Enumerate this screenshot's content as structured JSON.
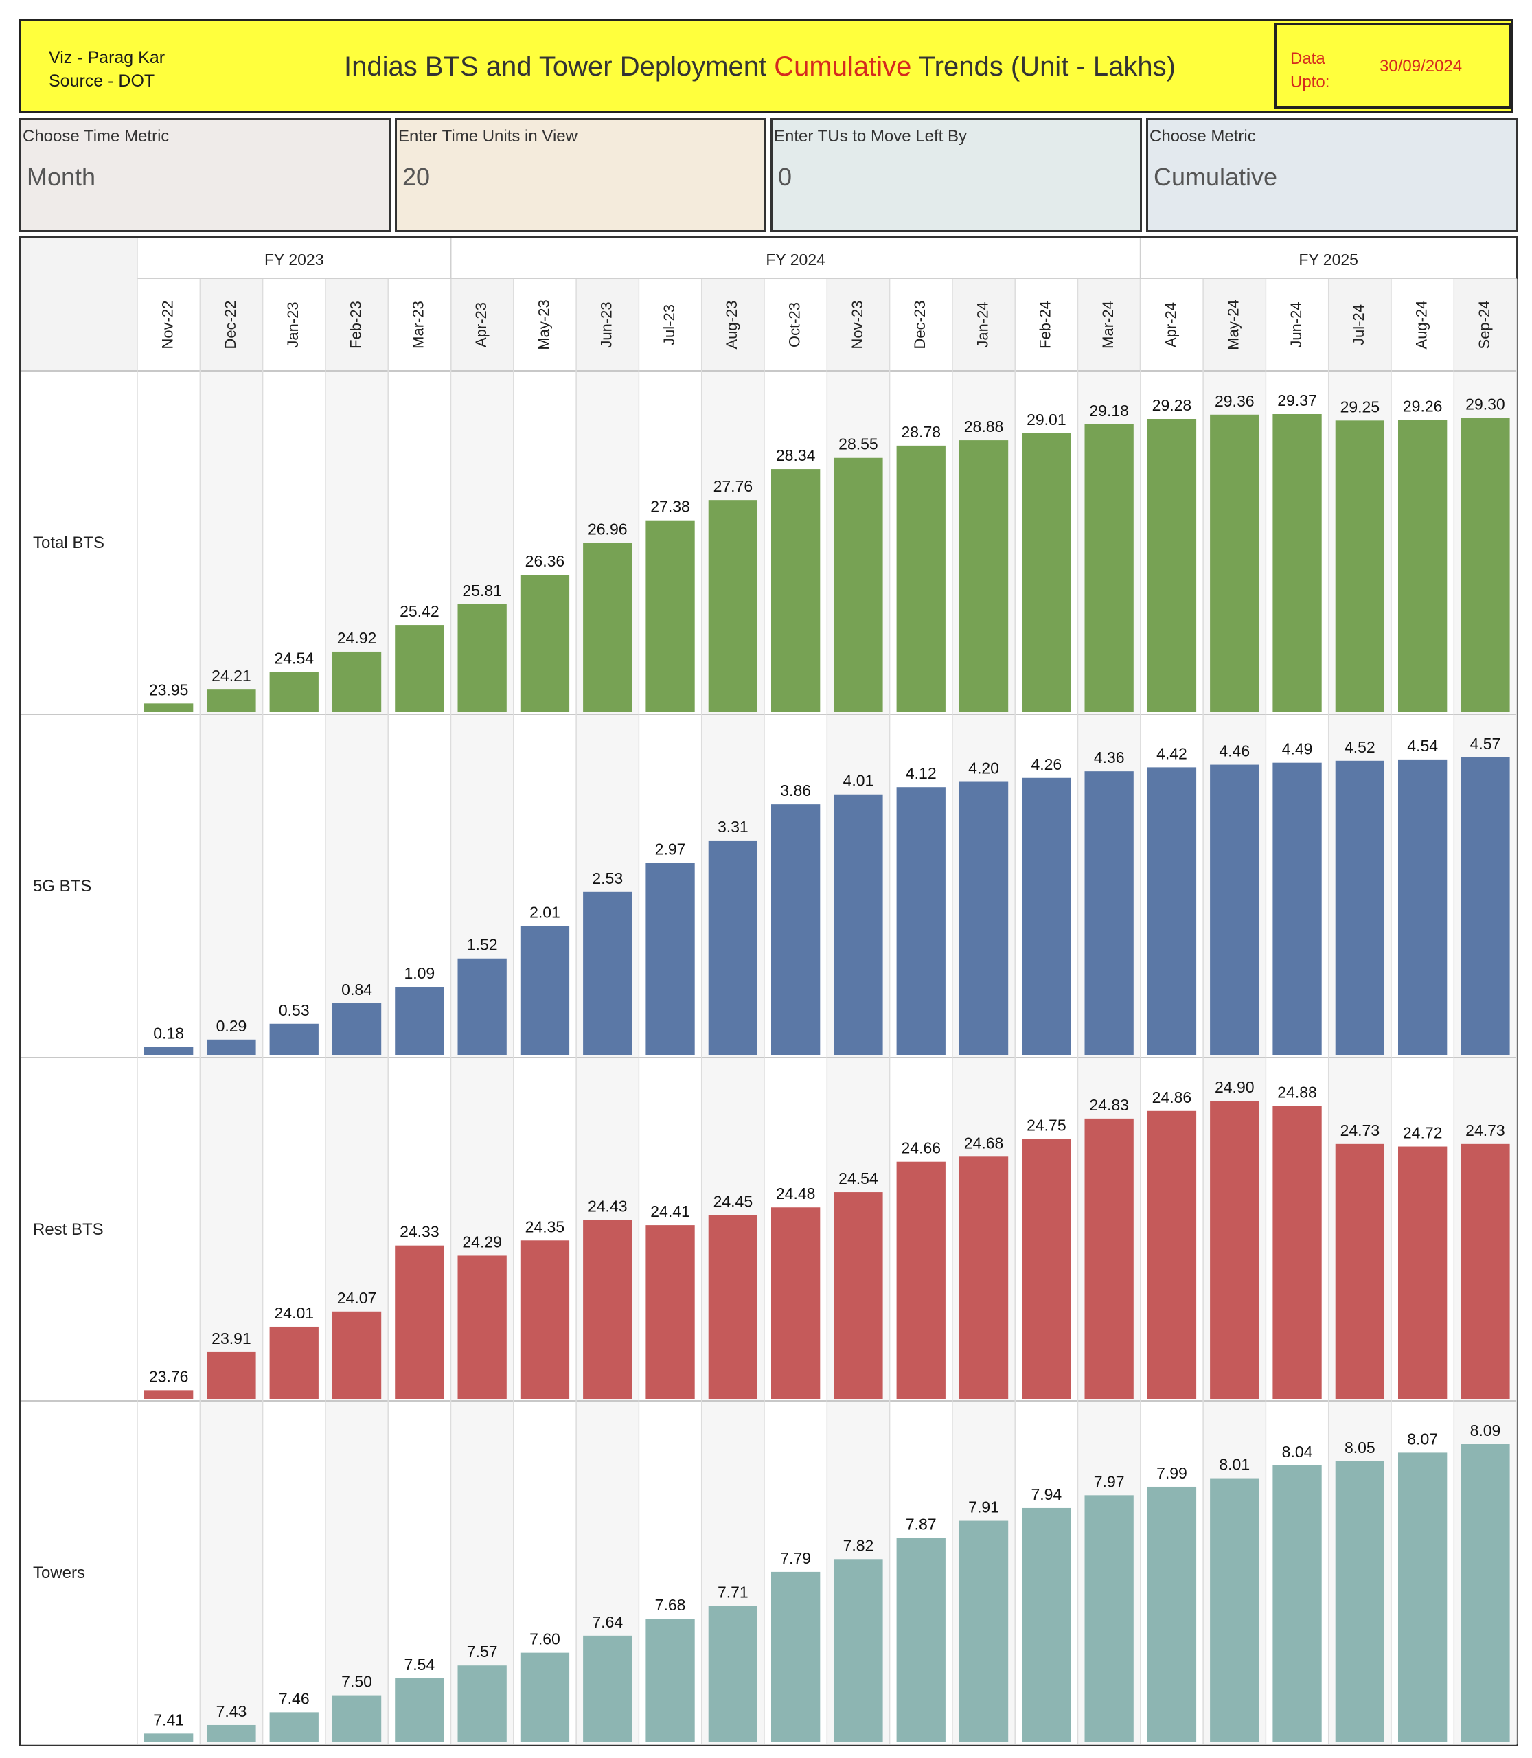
{
  "header": {
    "credit_line1": "Viz - Parag Kar",
    "credit_line2": "Source - DOT",
    "title_prefix": "Indias BTS and Tower Deployment",
    "title_highlight": "Cumulative",
    "title_suffix": "Trends (Unit - Lakhs)",
    "data_label_line1": "Data",
    "data_label_line2": "Upto:",
    "data_date": "30/09/2024",
    "colors": {
      "banner": "#ffff3d",
      "highlight": "#d52b1e"
    }
  },
  "params": [
    {
      "label": "Choose Time Metric",
      "value": "Month",
      "bg": "#efebe9"
    },
    {
      "label": "Enter Time Units in View",
      "value": "20",
      "bg": "#f4ebdc"
    },
    {
      "label": "Enter TUs to Move Left By",
      "value": "0",
      "bg": "#e3ebeb"
    },
    {
      "label": "Choose Metric",
      "value": "Cumulative",
      "bg": "#e3e9ee"
    }
  ],
  "chart_data": {
    "type": "bar",
    "fiscal_years": [
      {
        "label": "FY 2023",
        "count": 5
      },
      {
        "label": "FY 2024",
        "count": 11
      },
      {
        "label": "FY 2025",
        "count": 6
      }
    ],
    "categories": [
      "Nov-22",
      "Dec-22",
      "Jan-23",
      "Feb-23",
      "Mar-23",
      "Apr-23",
      "May-23",
      "Jun-23",
      "Jul-23",
      "Aug-23",
      "Oct-23",
      "Nov-23",
      "Dec-23",
      "Jan-24",
      "Feb-24",
      "Mar-24",
      "Apr-24",
      "May-24",
      "Jun-24",
      "Jul-24",
      "Aug-24",
      "Sep-24"
    ],
    "series": [
      {
        "name": "Total BTS",
        "color": "#77a254",
        "values": [
          23.95,
          24.21,
          24.54,
          24.92,
          25.42,
          25.81,
          26.36,
          26.96,
          27.38,
          27.76,
          28.34,
          28.55,
          28.78,
          28.88,
          29.01,
          29.18,
          29.28,
          29.36,
          29.37,
          29.25,
          29.26,
          29.3
        ],
        "labels": [
          "23.95",
          "24.21",
          "24.54",
          "24.92",
          "25.42",
          "25.81",
          "26.36",
          "26.96",
          "27.38",
          "27.76",
          "28.34",
          "28.55",
          "28.78",
          "28.88",
          "29.01",
          "29.18",
          "29.28",
          "29.36",
          "29.37",
          "29.25",
          "29.26",
          "29.30"
        ]
      },
      {
        "name": "5G BTS",
        "color": "#5b78a6",
        "values": [
          0.18,
          0.29,
          0.53,
          0.84,
          1.09,
          1.52,
          2.01,
          2.53,
          2.97,
          3.31,
          3.86,
          4.01,
          4.12,
          4.2,
          4.26,
          4.36,
          4.42,
          4.46,
          4.49,
          4.52,
          4.54,
          4.57
        ],
        "labels": [
          "0.18",
          "0.29",
          "0.53",
          "0.84",
          "1.09",
          "1.52",
          "2.01",
          "2.53",
          "2.97",
          "3.31",
          "3.86",
          "4.01",
          "4.12",
          "4.20",
          "4.26",
          "4.36",
          "4.42",
          "4.46",
          "4.49",
          "4.52",
          "4.54",
          "4.57"
        ]
      },
      {
        "name": "Rest BTS",
        "color": "#c55a5a",
        "values": [
          23.76,
          23.91,
          24.01,
          24.07,
          24.33,
          24.29,
          24.35,
          24.43,
          24.41,
          24.45,
          24.48,
          24.54,
          24.66,
          24.68,
          24.75,
          24.83,
          24.86,
          24.9,
          24.88,
          24.73,
          24.72,
          24.73
        ],
        "labels": [
          "23.76",
          "23.91",
          "24.01",
          "24.07",
          "24.33",
          "24.29",
          "24.35",
          "24.43",
          "24.41",
          "24.45",
          "24.48",
          "24.54",
          "24.66",
          "24.68",
          "24.75",
          "24.83",
          "24.86",
          "24.90",
          "24.88",
          "24.73",
          "24.72",
          "24.73"
        ]
      },
      {
        "name": "Towers",
        "color": "#8db5b2",
        "values": [
          7.41,
          7.43,
          7.46,
          7.5,
          7.54,
          7.57,
          7.6,
          7.64,
          7.68,
          7.71,
          7.79,
          7.82,
          7.87,
          7.91,
          7.94,
          7.97,
          7.99,
          8.01,
          8.04,
          8.05,
          8.07,
          8.09
        ],
        "labels": [
          "7.41",
          "7.43",
          "7.46",
          "7.50",
          "7.54",
          "7.57",
          "7.60",
          "7.64",
          "7.68",
          "7.71",
          "7.79",
          "7.82",
          "7.87",
          "7.91",
          "7.94",
          "7.97",
          "7.99",
          "8.01",
          "8.04",
          "8.05",
          "8.07",
          "8.09"
        ]
      }
    ],
    "legend": "none",
    "grid": false
  }
}
